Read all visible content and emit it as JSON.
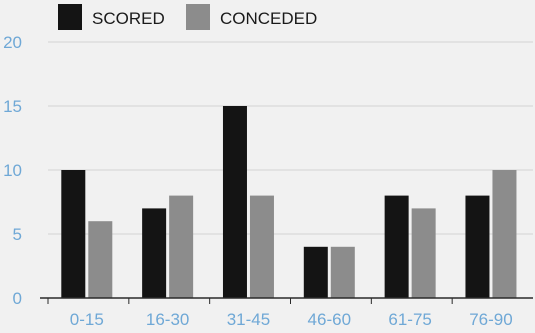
{
  "chart_data": {
    "type": "bar",
    "categories": [
      "0-15",
      "16-30",
      "31-45",
      "46-60",
      "61-75",
      "76-90"
    ],
    "series": [
      {
        "name": "SCORED",
        "values": [
          10,
          7,
          15,
          4,
          8,
          8
        ]
      },
      {
        "name": "CONCEDED",
        "values": [
          6,
          8,
          8,
          4,
          7,
          10
        ]
      }
    ],
    "y_ticks": [
      "0",
      "5",
      "10",
      "15",
      "20"
    ],
    "ylim": [
      0,
      20
    ],
    "grid": true,
    "legend_position": "top-left"
  },
  "colors": {
    "scored": "#141414",
    "conceded": "#8c8c8c",
    "tick_text": "#6fa8d6",
    "grid": "#d4d4d4",
    "axis": "#2a2a2a",
    "background": "#f1f1f1"
  }
}
